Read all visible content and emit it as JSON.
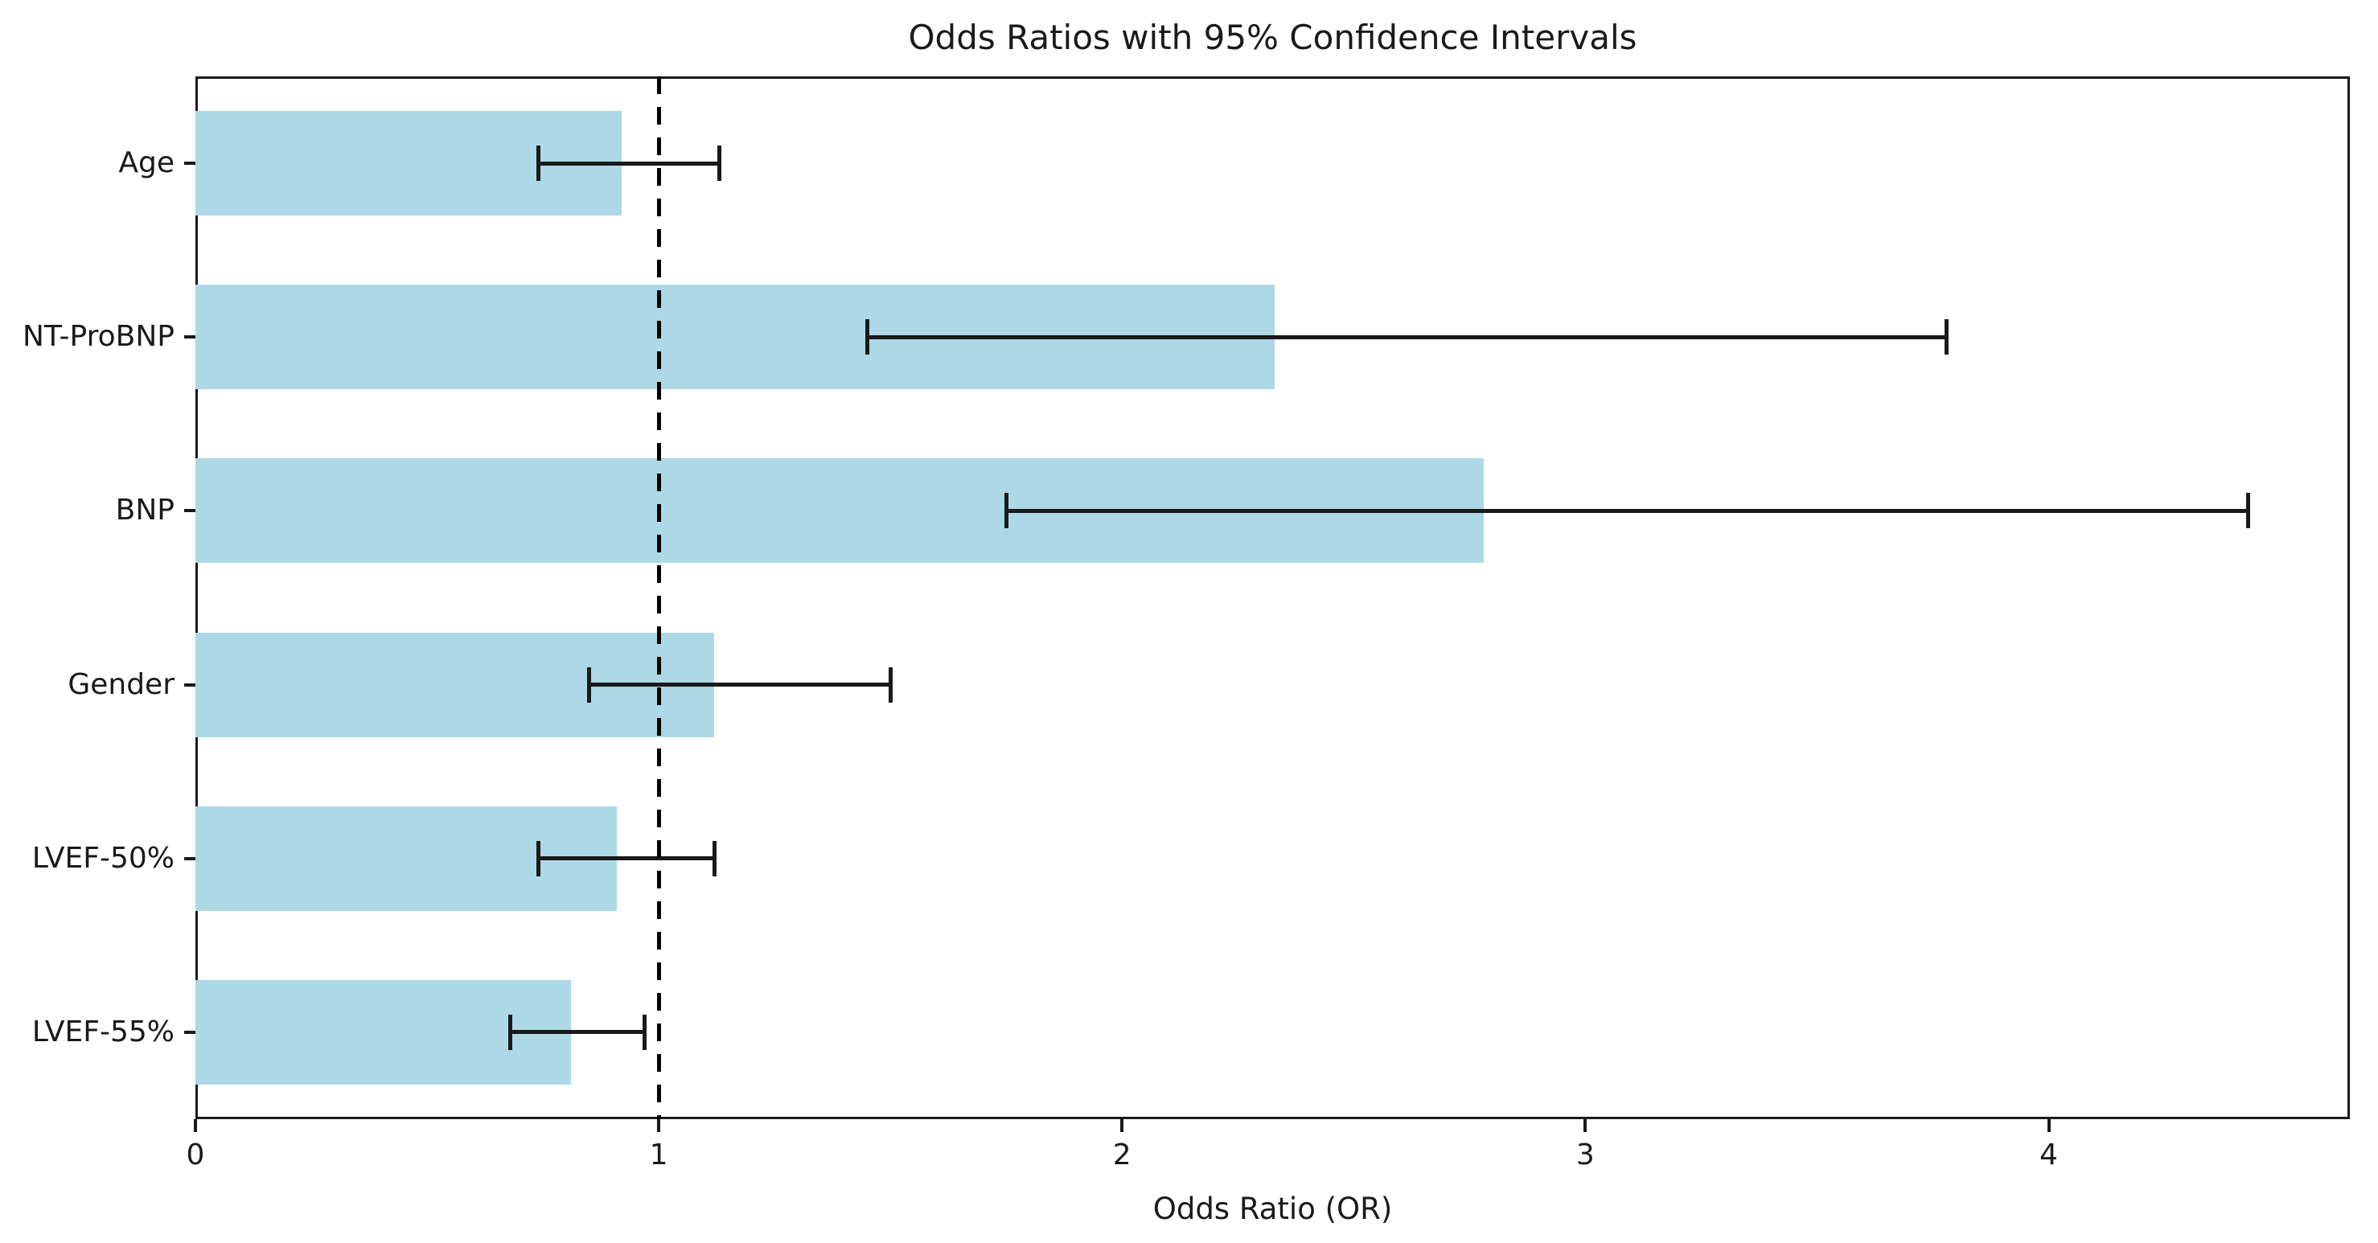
{
  "chart_data": {
    "type": "bar",
    "orientation": "horizontal",
    "title": "Odds Ratios with 95% Confidence Intervals",
    "xlabel": "Odds Ratio (OR)",
    "ylabel": "",
    "categories": [
      "Age",
      "NT-ProBNP",
      "BNP",
      "Gender",
      "LVEF-50%",
      "LVEF-55%"
    ],
    "series": [
      {
        "name": "Odds Ratio",
        "values": [
          0.92,
          2.33,
          2.78,
          1.12,
          0.91,
          0.81
        ],
        "ci_low": [
          0.74,
          1.45,
          1.75,
          0.85,
          0.74,
          0.68
        ],
        "ci_high": [
          1.13,
          3.78,
          4.43,
          1.5,
          1.12,
          0.97
        ]
      }
    ],
    "xlim": [
      0,
      4.65
    ],
    "xticks": [
      "0",
      "1",
      "2",
      "3",
      "4"
    ],
    "reference_line": {
      "x": 1,
      "style": "dashed",
      "color": "#000000"
    },
    "bar_color": "#ADD8E6",
    "error_color": "#1a1a1a",
    "grid": false,
    "legend": false
  }
}
